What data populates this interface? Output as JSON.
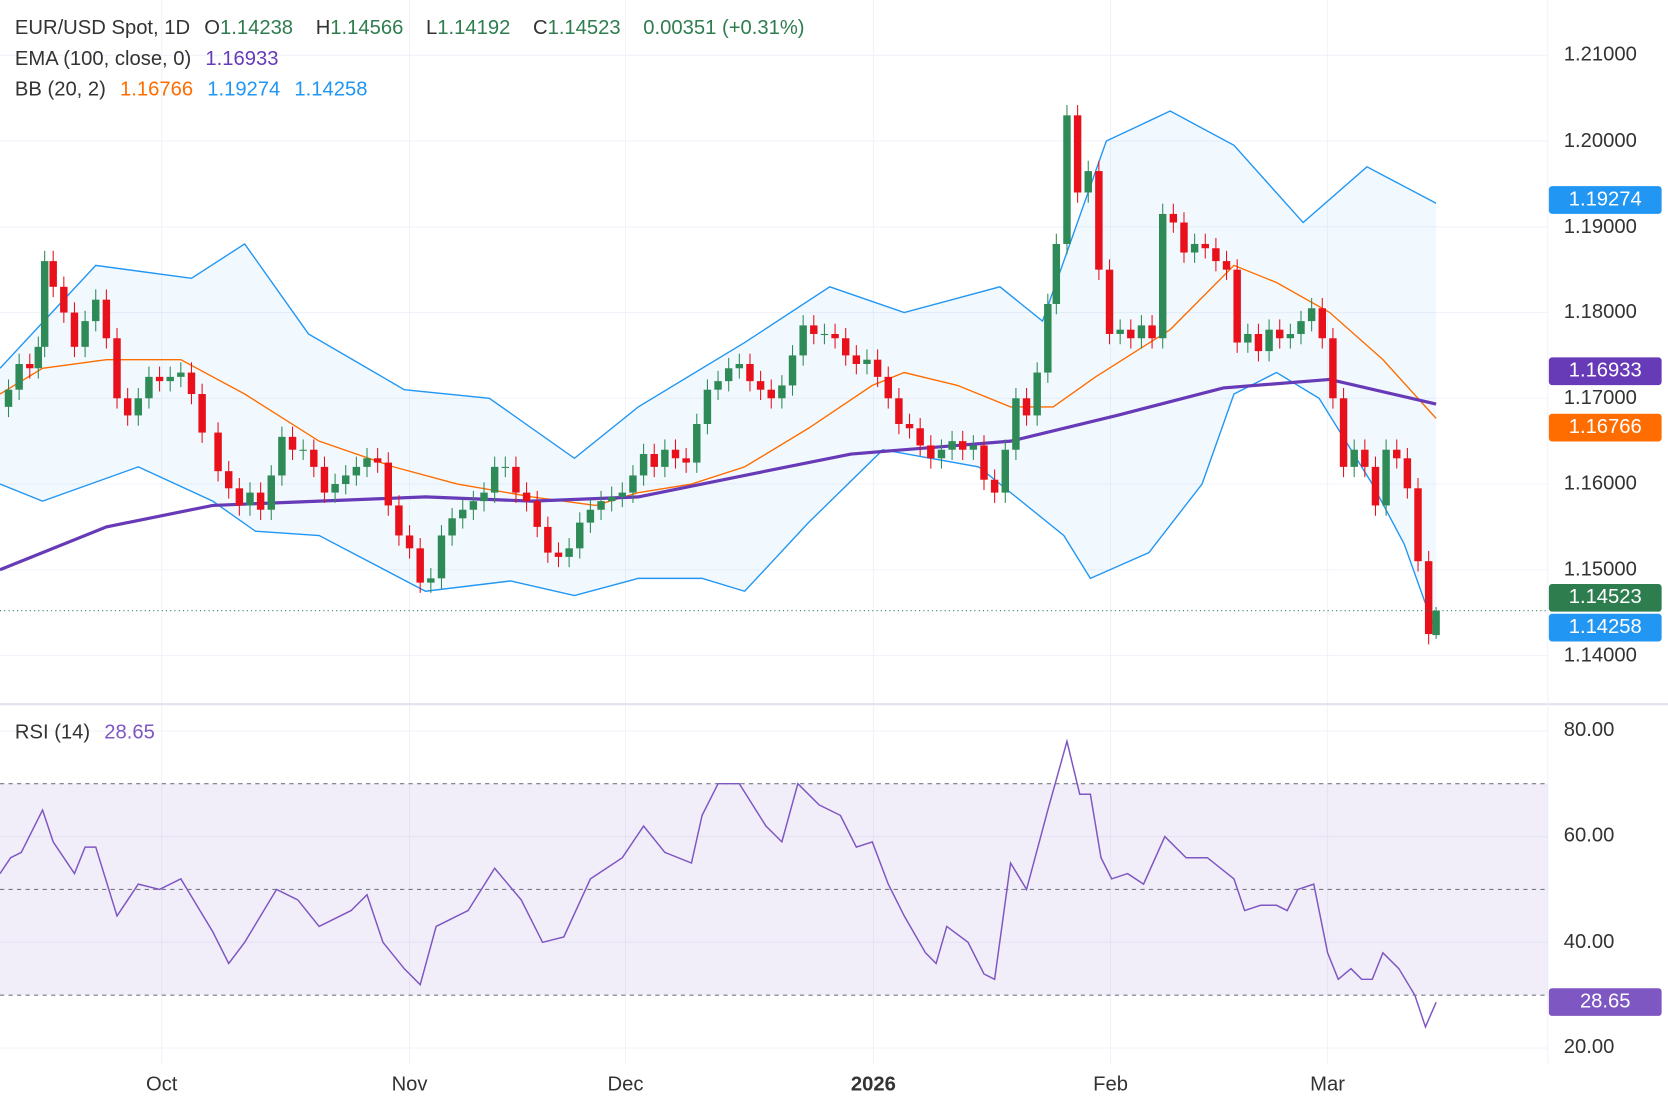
{
  "header": {
    "symbol": "EUR/USD Spot, 1D",
    "open_label": "O",
    "open": "1.14238",
    "high_label": "H",
    "high": "1.14566",
    "low_label": "L",
    "low": "1.14192",
    "close_label": "C",
    "close": "1.14523",
    "change": "0.00351 (+0.31%)"
  },
  "ema": {
    "label": "EMA (100, close, 0)",
    "value": "1.16933"
  },
  "bb": {
    "label": "BB (20, 2)",
    "basis": "1.16766",
    "upper": "1.19274",
    "lower": "1.14258"
  },
  "rsi": {
    "label": "RSI (14)",
    "value": "28.65"
  },
  "colors": {
    "up": "#2e8b57",
    "down": "#e8101a",
    "ema": "#673ab7",
    "bb_basis": "#ff6d00",
    "bb_band": "#2196f3",
    "rsi": "#7e57c2"
  },
  "price_axis": [
    "1.21000",
    "1.20000",
    "1.19000",
    "1.18000",
    "1.17000",
    "1.16000",
    "1.15000",
    "1.14000"
  ],
  "rsi_axis": [
    "80.00",
    "60.00",
    "40.00",
    "20.00"
  ],
  "badges": {
    "bb_upper": "1.19274",
    "ema": "1.16933",
    "bb_basis": "1.16766",
    "last": "1.14523",
    "bb_lower": "1.14258",
    "rsi": "28.65"
  },
  "chart_data": {
    "type": "candlestick",
    "x_unit": "trading day index",
    "time_ticks": [
      {
        "label": "Oct",
        "day": 15.2
      },
      {
        "label": "Nov",
        "day": 38.5
      },
      {
        "label": "Dec",
        "day": 58.8
      },
      {
        "label": "2026",
        "day": 82.1,
        "bold": true
      },
      {
        "label": "Feb",
        "day": 104.4
      },
      {
        "label": "Mar",
        "day": 124.8
      }
    ],
    "ylim": [
      1.137,
      1.213
    ],
    "last_candle": {
      "o": 1.14238,
      "h": 1.14566,
      "l": 1.14192,
      "c": 1.14523
    },
    "closes": [
      [
        0.8,
        1.171
      ],
      [
        1.8,
        1.174
      ],
      [
        2.8,
        1.1735
      ],
      [
        3.6,
        1.176
      ],
      [
        4.2,
        1.186
      ],
      [
        5,
        1.183
      ],
      [
        6,
        1.18
      ],
      [
        7,
        1.176
      ],
      [
        8,
        1.179
      ],
      [
        9,
        1.1815
      ],
      [
        10,
        1.177
      ],
      [
        11,
        1.17
      ],
      [
        12,
        1.168
      ],
      [
        13,
        1.17
      ],
      [
        14,
        1.1725
      ],
      [
        15,
        1.172
      ],
      [
        16,
        1.1725
      ],
      [
        17,
        1.173
      ],
      [
        18,
        1.1705
      ],
      [
        19,
        1.166
      ],
      [
        20.5,
        1.1615
      ],
      [
        21.5,
        1.1595
      ],
      [
        22.5,
        1.1575
      ],
      [
        23.5,
        1.159
      ],
      [
        24.5,
        1.157
      ],
      [
        25.5,
        1.161
      ],
      [
        26.5,
        1.1655
      ],
      [
        27.5,
        1.164
      ],
      [
        28.5,
        1.164
      ],
      [
        29.5,
        1.162
      ],
      [
        30.5,
        1.159
      ],
      [
        31.5,
        1.16
      ],
      [
        32.5,
        1.161
      ],
      [
        33.5,
        1.162
      ],
      [
        34.5,
        1.163
      ],
      [
        35.5,
        1.1625
      ],
      [
        36.5,
        1.1575
      ],
      [
        37.5,
        1.154
      ],
      [
        38.5,
        1.1525
      ],
      [
        39.5,
        1.1485
      ],
      [
        40.5,
        1.149
      ],
      [
        41.5,
        1.154
      ],
      [
        42.5,
        1.156
      ],
      [
        43.5,
        1.157
      ],
      [
        44.5,
        1.158
      ],
      [
        45.5,
        1.159
      ],
      [
        46.5,
        1.162
      ],
      [
        47.5,
        1.162
      ],
      [
        48.5,
        1.159
      ],
      [
        49.5,
        1.158
      ],
      [
        50.5,
        1.155
      ],
      [
        51.5,
        1.152
      ],
      [
        52.5,
        1.1515
      ],
      [
        53.5,
        1.1525
      ],
      [
        54.5,
        1.1555
      ],
      [
        55.5,
        1.157
      ],
      [
        56.5,
        1.158
      ],
      [
        57.5,
        1.1585
      ],
      [
        58.5,
        1.159
      ],
      [
        59.5,
        1.161
      ],
      [
        60.5,
        1.1635
      ],
      [
        61.5,
        1.162
      ],
      [
        62.5,
        1.164
      ],
      [
        63.5,
        1.163
      ],
      [
        64.5,
        1.1625
      ],
      [
        65.5,
        1.167
      ],
      [
        66.5,
        1.171
      ],
      [
        67.5,
        1.172
      ],
      [
        68.5,
        1.1735
      ],
      [
        69.5,
        1.174
      ],
      [
        70.5,
        1.172
      ],
      [
        71.5,
        1.171
      ],
      [
        72.5,
        1.17
      ],
      [
        73.5,
        1.1715
      ],
      [
        74.5,
        1.175
      ],
      [
        75.5,
        1.1785
      ],
      [
        76.5,
        1.1775
      ],
      [
        77.5,
        1.1775
      ],
      [
        78.5,
        1.177
      ],
      [
        79.5,
        1.175
      ],
      [
        80.5,
        1.174
      ],
      [
        81.5,
        1.1745
      ],
      [
        82.5,
        1.1725
      ],
      [
        83.5,
        1.17
      ],
      [
        84.5,
        1.167
      ],
      [
        85.5,
        1.1665
      ],
      [
        86.5,
        1.1645
      ],
      [
        87.5,
        1.163
      ],
      [
        88.5,
        1.164
      ],
      [
        89.5,
        1.165
      ],
      [
        90.5,
        1.164
      ],
      [
        91.5,
        1.1645
      ],
      [
        92.5,
        1.1605
      ],
      [
        93.5,
        1.159
      ],
      [
        94.5,
        1.164
      ],
      [
        95.5,
        1.17
      ],
      [
        96.5,
        1.168
      ],
      [
        97.5,
        1.173
      ],
      [
        98.5,
        1.181
      ],
      [
        99.3,
        1.188
      ],
      [
        100.3,
        1.203
      ],
      [
        101.3,
        1.194
      ],
      [
        102.3,
        1.1965
      ],
      [
        103.3,
        1.185
      ],
      [
        104.3,
        1.1775
      ],
      [
        105.3,
        1.178
      ],
      [
        106.3,
        1.177
      ],
      [
        107.3,
        1.1785
      ],
      [
        108.3,
        1.177
      ],
      [
        109.3,
        1.1915
      ],
      [
        110.3,
        1.1905
      ],
      [
        111.3,
        1.187
      ],
      [
        112.3,
        1.188
      ],
      [
        113.3,
        1.1875
      ],
      [
        114.3,
        1.186
      ],
      [
        115.3,
        1.185
      ],
      [
        116.3,
        1.1765
      ],
      [
        117.3,
        1.1775
      ],
      [
        118.3,
        1.1755
      ],
      [
        119.3,
        1.178
      ],
      [
        120.3,
        1.177
      ],
      [
        121.3,
        1.1775
      ],
      [
        122.3,
        1.179
      ],
      [
        123.3,
        1.1805
      ],
      [
        124.3,
        1.177
      ],
      [
        125.3,
        1.17
      ],
      [
        126.3,
        1.162
      ],
      [
        127.3,
        1.164
      ],
      [
        128.3,
        1.162
      ],
      [
        129.3,
        1.1575
      ],
      [
        130.3,
        1.164
      ],
      [
        131.3,
        1.163
      ],
      [
        132.3,
        1.1595
      ],
      [
        133.3,
        1.151
      ],
      [
        134.3,
        1.1425
      ]
    ],
    "ema100": [
      [
        0,
        1.15
      ],
      [
        10,
        1.155
      ],
      [
        20,
        1.1575
      ],
      [
        30,
        1.158
      ],
      [
        40,
        1.1585
      ],
      [
        50,
        1.158
      ],
      [
        60,
        1.1585
      ],
      [
        70,
        1.161
      ],
      [
        80,
        1.1635
      ],
      [
        90,
        1.1645
      ],
      [
        95,
        1.165
      ],
      [
        100,
        1.1665
      ],
      [
        105,
        1.168
      ],
      [
        115,
        1.1712
      ],
      [
        125,
        1.1722
      ],
      [
        135,
        1.16933
      ]
    ],
    "bb_basis": [
      [
        0,
        1.1705
      ],
      [
        4,
        1.1735
      ],
      [
        10,
        1.1745
      ],
      [
        17,
        1.1745
      ],
      [
        23,
        1.1705
      ],
      [
        30,
        1.165
      ],
      [
        37,
        1.162
      ],
      [
        43,
        1.16
      ],
      [
        50,
        1.1585
      ],
      [
        56,
        1.1575
      ],
      [
        60,
        1.159
      ],
      [
        65,
        1.16
      ],
      [
        70,
        1.162
      ],
      [
        76,
        1.1665
      ],
      [
        82,
        1.1715
      ],
      [
        85,
        1.173
      ],
      [
        90,
        1.1715
      ],
      [
        95,
        1.169
      ],
      [
        99,
        1.169
      ],
      [
        103,
        1.1725
      ],
      [
        110,
        1.178
      ],
      [
        116,
        1.1855
      ],
      [
        120,
        1.1835
      ],
      [
        125,
        1.18
      ],
      [
        130,
        1.1745
      ],
      [
        135,
        1.16766
      ]
    ],
    "bb_upper": [
      [
        0,
        1.1735
      ],
      [
        9,
        1.1855
      ],
      [
        18,
        1.184
      ],
      [
        23,
        1.188
      ],
      [
        29,
        1.1775
      ],
      [
        38,
        1.171
      ],
      [
        46,
        1.17
      ],
      [
        54,
        1.163
      ],
      [
        60,
        1.169
      ],
      [
        70,
        1.1765
      ],
      [
        78,
        1.183
      ],
      [
        85,
        1.18
      ],
      [
        94,
        1.183
      ],
      [
        98,
        1.179
      ],
      [
        104,
        1.2
      ],
      [
        110,
        1.2035
      ],
      [
        116,
        1.1995
      ],
      [
        122.5,
        1.1905
      ],
      [
        128.5,
        1.197
      ],
      [
        135,
        1.19274
      ]
    ],
    "bb_lower": [
      [
        0,
        1.16
      ],
      [
        4,
        1.158
      ],
      [
        13,
        1.162
      ],
      [
        20,
        1.158
      ],
      [
        24,
        1.1545
      ],
      [
        30,
        1.154
      ],
      [
        40,
        1.1475
      ],
      [
        48,
        1.1487
      ],
      [
        54,
        1.147
      ],
      [
        60,
        1.149
      ],
      [
        66,
        1.149
      ],
      [
        70,
        1.1475
      ],
      [
        76,
        1.1555
      ],
      [
        83,
        1.164
      ],
      [
        92,
        1.162
      ],
      [
        96,
        1.158
      ],
      [
        100,
        1.154
      ],
      [
        102.5,
        1.149
      ],
      [
        108,
        1.152
      ],
      [
        113,
        1.16
      ],
      [
        116,
        1.1705
      ],
      [
        120,
        1.173
      ],
      [
        124,
        1.17
      ],
      [
        129,
        1.16
      ],
      [
        132,
        1.153
      ],
      [
        135,
        1.14258
      ]
    ],
    "rsi_ylim": [
      15,
      85
    ],
    "rsi_levels": [
      70,
      50,
      30
    ],
    "rsi14": [
      [
        0,
        53
      ],
      [
        1,
        56
      ],
      [
        2,
        57
      ],
      [
        4,
        65
      ],
      [
        5,
        59
      ],
      [
        7,
        53
      ],
      [
        8,
        58
      ],
      [
        9,
        58
      ],
      [
        11,
        45
      ],
      [
        13,
        51
      ],
      [
        15,
        50
      ],
      [
        17,
        52
      ],
      [
        20,
        42
      ],
      [
        21.5,
        36
      ],
      [
        23,
        40
      ],
      [
        26,
        50
      ],
      [
        28,
        48
      ],
      [
        30,
        43
      ],
      [
        33,
        46
      ],
      [
        34.5,
        49
      ],
      [
        36,
        40
      ],
      [
        38,
        35
      ],
      [
        39.5,
        32
      ],
      [
        41,
        43
      ],
      [
        44,
        46
      ],
      [
        46.5,
        54
      ],
      [
        49,
        48
      ],
      [
        51,
        40
      ],
      [
        53,
        41
      ],
      [
        55.5,
        52
      ],
      [
        58.5,
        56
      ],
      [
        60.5,
        62
      ],
      [
        62.5,
        57
      ],
      [
        65,
        55
      ],
      [
        66,
        64
      ],
      [
        67.5,
        70
      ],
      [
        69.5,
        70
      ],
      [
        72,
        62
      ],
      [
        73.5,
        59
      ],
      [
        75,
        70
      ],
      [
        77,
        66
      ],
      [
        79,
        64
      ],
      [
        80.5,
        58
      ],
      [
        82,
        59
      ],
      [
        83.5,
        51
      ],
      [
        85,
        45
      ],
      [
        87,
        38
      ],
      [
        88,
        36
      ],
      [
        89,
        43
      ],
      [
        91,
        40
      ],
      [
        92.5,
        34
      ],
      [
        93.5,
        33
      ],
      [
        95,
        55
      ],
      [
        96.5,
        50
      ],
      [
        98.5,
        65
      ],
      [
        100.3,
        78
      ],
      [
        101.5,
        68
      ],
      [
        102.5,
        68
      ],
      [
        103.5,
        56
      ],
      [
        104.5,
        52
      ],
      [
        106,
        53
      ],
      [
        107.5,
        51
      ],
      [
        109.5,
        60
      ],
      [
        111.5,
        56
      ],
      [
        113.5,
        56
      ],
      [
        116,
        52
      ],
      [
        117,
        46
      ],
      [
        118.5,
        47
      ],
      [
        120,
        47
      ],
      [
        121,
        46
      ],
      [
        122,
        50
      ],
      [
        123.5,
        51
      ],
      [
        124.8,
        38
      ],
      [
        125.8,
        33
      ],
      [
        127,
        35
      ],
      [
        128,
        33
      ],
      [
        129,
        33
      ],
      [
        130,
        38
      ],
      [
        131.5,
        35
      ],
      [
        133,
        30
      ],
      [
        134,
        24
      ],
      [
        135,
        28.65
      ]
    ]
  }
}
